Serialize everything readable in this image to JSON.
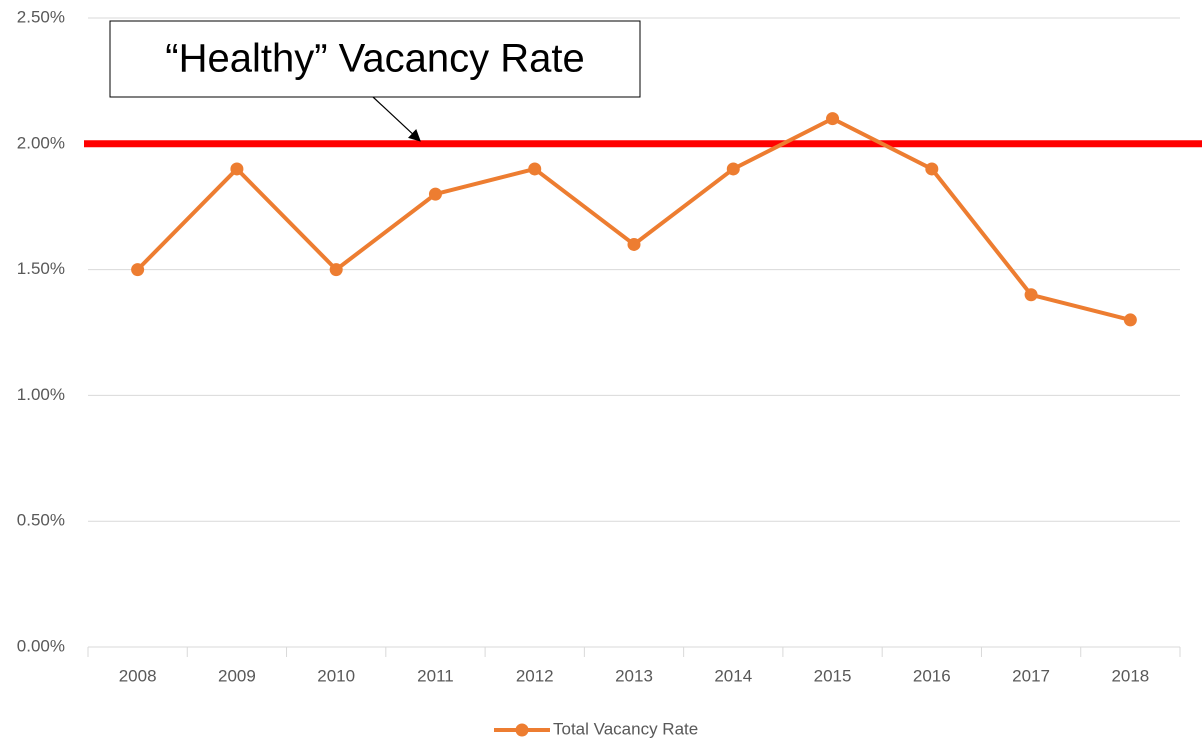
{
  "chart_data": {
    "type": "line",
    "annotation": "“Healthy” Vacancy Rate",
    "categories": [
      "2008",
      "2009",
      "2010",
      "2011",
      "2012",
      "2013",
      "2014",
      "2015",
      "2016",
      "2017",
      "2018"
    ],
    "series": [
      {
        "name": "Total Vacancy Rate",
        "color": "#ed7d31",
        "values": [
          1.5,
          1.9,
          1.5,
          1.8,
          1.9,
          1.6,
          1.9,
          2.1,
          1.9,
          1.4,
          1.3
        ]
      }
    ],
    "reference_line": {
      "value": 2,
      "color": "#ff0000"
    },
    "ylim": [
      0,
      2.5
    ],
    "yticks": [
      {
        "value": 0,
        "label": "0.00%"
      },
      {
        "value": 0.5,
        "label": "0.50%"
      },
      {
        "value": 1,
        "label": "1.00%"
      },
      {
        "value": 1.5,
        "label": "1.50%"
      },
      {
        "value": 2,
        "label": "2.00%"
      },
      {
        "value": 2.5,
        "label": "2.50%"
      }
    ],
    "grid": true,
    "legend": "bottom"
  }
}
